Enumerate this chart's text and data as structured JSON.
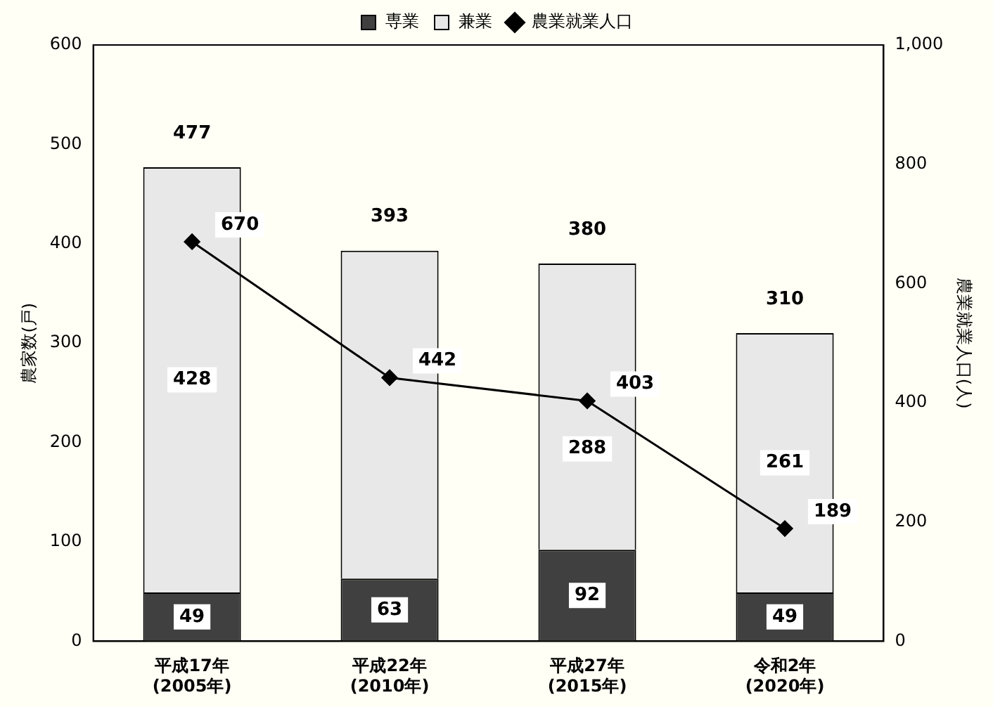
{
  "chart_data": {
    "type": "bar",
    "stacked": true,
    "categories": [
      "平成17年\n(2005年)",
      "平成22年\n(2010年)",
      "平成27年\n(2015年)",
      "令和2年\n(2020年)"
    ],
    "series": [
      {
        "name": "専業",
        "color": "#404040",
        "values": [
          49,
          63,
          92,
          49
        ],
        "value_labels": [
          "49",
          "63",
          "92",
          "49"
        ]
      },
      {
        "name": "兼業",
        "color": "#e8e8e8",
        "values": [
          428,
          330,
          288,
          261
        ],
        "value_labels": [
          "428",
          null,
          "288",
          "261"
        ]
      },
      {
        "name": "農業就業人口",
        "type": "line",
        "axis": "y2",
        "color": "#000000",
        "marker": "diamond",
        "values": [
          670,
          442,
          403,
          189
        ],
        "value_labels": [
          "670",
          "442",
          "403",
          "189"
        ]
      }
    ],
    "totals": [
      "477",
      "393",
      "380",
      "310"
    ],
    "ylabel": "農家数(戸)",
    "y2label": "農業就業人口(人)",
    "ylim": [
      0,
      600
    ],
    "yticks": [
      0,
      100,
      200,
      300,
      400,
      500,
      600
    ],
    "y2lim": [
      0,
      1000
    ],
    "y2ticks": [
      0,
      200,
      400,
      600,
      800,
      {
        "value": 1000,
        "label": "1,000"
      }
    ],
    "grid": false,
    "legend": "top"
  }
}
